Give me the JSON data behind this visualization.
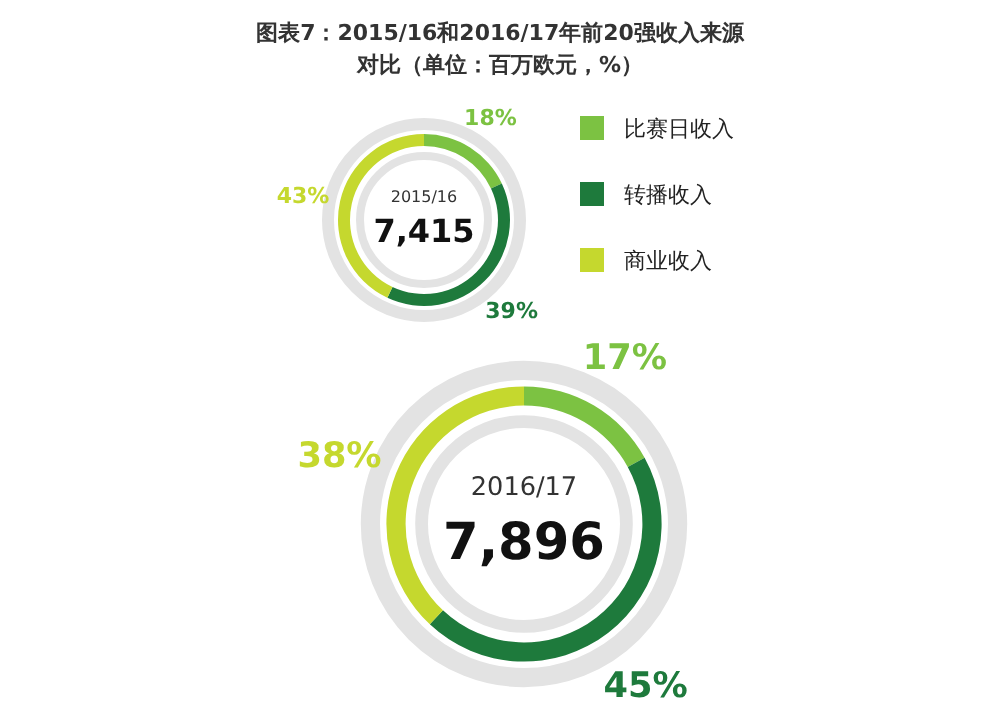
{
  "chart_data": [
    {
      "type": "donut",
      "title": "图表7：2015/16和2016/17年前20强收入来源",
      "subtitle": "对比（单位：百万欧元，%）",
      "categories": [
        "比赛日收入",
        "转播收入",
        "商业收入"
      ],
      "values": [
        18,
        39,
        43
      ],
      "colors": [
        "#7cc242",
        "#1e7a3c",
        "#c5d82e"
      ],
      "value_labels": [
        "18%",
        "39%",
        "43%"
      ],
      "annotations": [
        "2015/16",
        "7,415"
      ],
      "legend": "right"
    },
    {
      "type": "donut",
      "categories": [
        null,
        null,
        null
      ],
      "values": [
        17,
        45,
        38
      ],
      "colors": [
        "#7cc242",
        "#1e7a3c",
        "#c5d82e"
      ],
      "value_labels": [
        "17%",
        "45%",
        "38%"
      ],
      "annotations": [
        "2016/17",
        "7,896"
      ],
      "legend": false
    }
  ]
}
